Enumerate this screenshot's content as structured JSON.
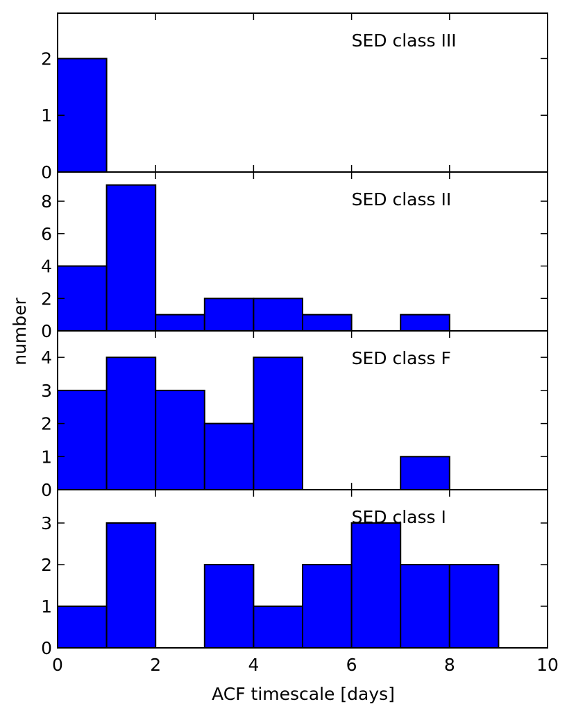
{
  "chart_data": {
    "type": "bar",
    "xlabel": "ACF timescale [days]",
    "ylabel": "number",
    "xlim": [
      0,
      10
    ],
    "x_ticks": [
      0,
      2,
      4,
      6,
      8,
      10
    ],
    "bin_edges": [
      0,
      1,
      2,
      3,
      4,
      5,
      6,
      7,
      8,
      9,
      10
    ],
    "bar_color": "#0000ff",
    "edge_color": "#000000",
    "grid": false,
    "panels": [
      {
        "label": "SED class III",
        "ylim": [
          0,
          2.8
        ],
        "y_ticks": [
          0,
          1,
          2
        ],
        "values": [
          2,
          0,
          0,
          0,
          0,
          0,
          0,
          0,
          0,
          0
        ]
      },
      {
        "label": "SED class II",
        "ylim": [
          0,
          9.8
        ],
        "y_ticks": [
          0,
          2,
          4,
          6,
          8
        ],
        "values": [
          4,
          9,
          1,
          2,
          2,
          1,
          0,
          1,
          0,
          0
        ]
      },
      {
        "label": "SED class F",
        "ylim": [
          0,
          4.8
        ],
        "y_ticks": [
          0,
          1,
          2,
          3,
          4
        ],
        "values": [
          3,
          4,
          3,
          2,
          4,
          0,
          0,
          1,
          0,
          0
        ]
      },
      {
        "label": "SED class I",
        "ylim": [
          0,
          3.8
        ],
        "y_ticks": [
          0,
          1,
          2,
          3
        ],
        "values": [
          1,
          3,
          0,
          2,
          1,
          2,
          3,
          2,
          2,
          0
        ]
      }
    ]
  }
}
